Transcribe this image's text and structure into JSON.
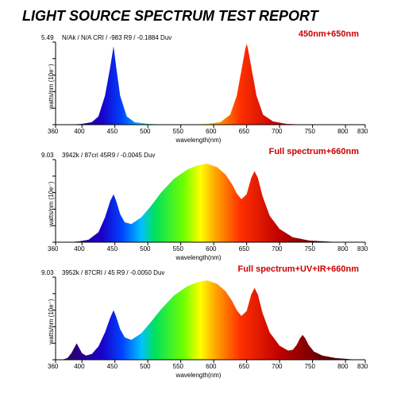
{
  "title": "LIGHT SOURCE SPECTRUM TEST REPORT",
  "axis": {
    "x_label": "wavelength(nm)",
    "y_label": "watts/nm (10e⁻)",
    "x_min": 360,
    "x_max": 830,
    "x_ticks": [
      360,
      400,
      450,
      500,
      550,
      600,
      650,
      700,
      750,
      800,
      830
    ],
    "plot": {
      "left": 40,
      "right": 430,
      "top": 14,
      "bottom": 118
    },
    "axis_color": "#000000",
    "tick_color": "#000000",
    "tick_fontsize": 8,
    "label_fontsize": 8
  },
  "spectrum_gradient": [
    {
      "nm": 380,
      "color": "#2e006b"
    },
    {
      "nm": 430,
      "color": "#1a00c8"
    },
    {
      "nm": 460,
      "color": "#0040ff"
    },
    {
      "nm": 490,
      "color": "#00c0ff"
    },
    {
      "nm": 510,
      "color": "#00e060"
    },
    {
      "nm": 555,
      "color": "#70ff00"
    },
    {
      "nm": 580,
      "color": "#ffff00"
    },
    {
      "nm": 600,
      "color": "#ffb000"
    },
    {
      "nm": 640,
      "color": "#ff3000"
    },
    {
      "nm": 700,
      "color": "#c00000"
    },
    {
      "nm": 780,
      "color": "#500000"
    }
  ],
  "charts": [
    {
      "id": "c1",
      "subtitle": "450nm+650nm",
      "params": "N/Ak / N/A CRI / -983 R9 / -0.1884 Duv",
      "y_max_label": "5.49",
      "curve": [
        [
          360,
          0
        ],
        [
          380,
          0
        ],
        [
          400,
          0.01
        ],
        [
          415,
          0.03
        ],
        [
          425,
          0.1
        ],
        [
          435,
          0.35
        ],
        [
          443,
          0.7
        ],
        [
          448,
          0.95
        ],
        [
          452,
          0.7
        ],
        [
          458,
          0.35
        ],
        [
          468,
          0.1
        ],
        [
          480,
          0.03
        ],
        [
          500,
          0.01
        ],
        [
          530,
          0
        ],
        [
          560,
          0
        ],
        [
          590,
          0.01
        ],
        [
          610,
          0.03
        ],
        [
          625,
          0.12
        ],
        [
          635,
          0.35
        ],
        [
          643,
          0.7
        ],
        [
          648,
          0.92
        ],
        [
          650,
          0.98
        ],
        [
          652,
          0.92
        ],
        [
          657,
          0.7
        ],
        [
          665,
          0.35
        ],
        [
          675,
          0.12
        ],
        [
          690,
          0.04
        ],
        [
          710,
          0.01
        ],
        [
          740,
          0
        ],
        [
          800,
          0
        ],
        [
          830,
          0
        ]
      ]
    },
    {
      "id": "c2",
      "subtitle": "Full spectrum+660nm",
      "params": "3942k / 87cri 45R9 / -0.0045 Duv",
      "y_max_label": "9.03",
      "curve": [
        [
          360,
          0
        ],
        [
          380,
          0
        ],
        [
          395,
          0.01
        ],
        [
          410,
          0.03
        ],
        [
          425,
          0.12
        ],
        [
          435,
          0.3
        ],
        [
          443,
          0.5
        ],
        [
          448,
          0.58
        ],
        [
          452,
          0.5
        ],
        [
          458,
          0.34
        ],
        [
          465,
          0.24
        ],
        [
          475,
          0.22
        ],
        [
          490,
          0.3
        ],
        [
          505,
          0.44
        ],
        [
          520,
          0.6
        ],
        [
          540,
          0.77
        ],
        [
          560,
          0.88
        ],
        [
          575,
          0.93
        ],
        [
          590,
          0.95
        ],
        [
          605,
          0.91
        ],
        [
          618,
          0.82
        ],
        [
          628,
          0.7
        ],
        [
          635,
          0.59
        ],
        [
          642,
          0.52
        ],
        [
          650,
          0.58
        ],
        [
          657,
          0.78
        ],
        [
          662,
          0.86
        ],
        [
          667,
          0.78
        ],
        [
          674,
          0.56
        ],
        [
          685,
          0.32
        ],
        [
          700,
          0.16
        ],
        [
          720,
          0.06
        ],
        [
          745,
          0.02
        ],
        [
          780,
          0.005
        ],
        [
          830,
          0
        ]
      ]
    },
    {
      "id": "c3",
      "subtitle": "Full spectrum+UV+IR+660nm",
      "params": "3952k / 87CRI / 45 R9 / -0.0050 Duv",
      "y_max_label": "9.03",
      "curve": [
        [
          360,
          0
        ],
        [
          370,
          0
        ],
        [
          378,
          0.02
        ],
        [
          384,
          0.08
        ],
        [
          388,
          0.14
        ],
        [
          392,
          0.2
        ],
        [
          396,
          0.14
        ],
        [
          400,
          0.08
        ],
        [
          406,
          0.05
        ],
        [
          415,
          0.07
        ],
        [
          425,
          0.16
        ],
        [
          435,
          0.33
        ],
        [
          443,
          0.51
        ],
        [
          448,
          0.6
        ],
        [
          452,
          0.52
        ],
        [
          458,
          0.37
        ],
        [
          465,
          0.27
        ],
        [
          475,
          0.24
        ],
        [
          490,
          0.32
        ],
        [
          505,
          0.46
        ],
        [
          520,
          0.61
        ],
        [
          540,
          0.78
        ],
        [
          560,
          0.89
        ],
        [
          575,
          0.94
        ],
        [
          590,
          0.96
        ],
        [
          605,
          0.92
        ],
        [
          618,
          0.83
        ],
        [
          628,
          0.71
        ],
        [
          635,
          0.6
        ],
        [
          642,
          0.53
        ],
        [
          650,
          0.59
        ],
        [
          657,
          0.79
        ],
        [
          662,
          0.87
        ],
        [
          667,
          0.79
        ],
        [
          674,
          0.57
        ],
        [
          685,
          0.33
        ],
        [
          700,
          0.17
        ],
        [
          713,
          0.11
        ],
        [
          720,
          0.12
        ],
        [
          726,
          0.18
        ],
        [
          731,
          0.26
        ],
        [
          735,
          0.3
        ],
        [
          739,
          0.26
        ],
        [
          744,
          0.18
        ],
        [
          752,
          0.1
        ],
        [
          765,
          0.05
        ],
        [
          785,
          0.02
        ],
        [
          810,
          0.005
        ],
        [
          830,
          0
        ]
      ]
    }
  ]
}
